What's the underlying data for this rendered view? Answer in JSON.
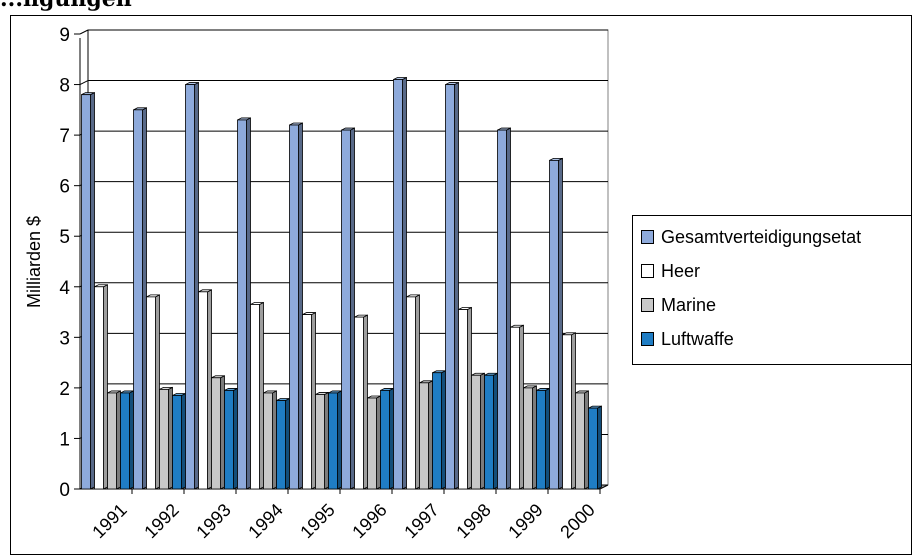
{
  "page": {
    "title": "...ngungen"
  },
  "chart_data": {
    "type": "bar",
    "title": "",
    "xlabel": "",
    "ylabel": "Milliarden $",
    "ylim": [
      0,
      9
    ],
    "yticks": [
      "0",
      "1",
      "2",
      "3",
      "4",
      "5",
      "6",
      "7",
      "8",
      "9"
    ],
    "categories": [
      "1991",
      "1992",
      "1993",
      "1994",
      "1995",
      "1996",
      "1997",
      "1998",
      "1999",
      "2000"
    ],
    "grid": true,
    "legend_position": "right",
    "three_d": true,
    "series": [
      {
        "name": "Gesamtverteidigungsetat",
        "color": "#8EAADB",
        "values": [
          7.8,
          7.5,
          8.0,
          7.3,
          7.2,
          7.1,
          8.1,
          8.0,
          7.1,
          6.5
        ]
      },
      {
        "name": "Heer",
        "color": "#FFFFFF",
        "values": [
          4.0,
          3.8,
          3.9,
          3.65,
          3.45,
          3.4,
          3.8,
          3.55,
          3.2,
          3.05
        ]
      },
      {
        "name": "Marine",
        "color": "#C8C8C8",
        "values": [
          1.9,
          1.97,
          2.2,
          1.9,
          1.87,
          1.8,
          2.1,
          2.25,
          2.0,
          1.9
        ]
      },
      {
        "name": "Luftwaffe",
        "color": "#1F7DC4",
        "values": [
          1.9,
          1.85,
          1.95,
          1.75,
          1.9,
          1.95,
          2.3,
          2.25,
          1.95,
          1.6
        ]
      }
    ]
  }
}
